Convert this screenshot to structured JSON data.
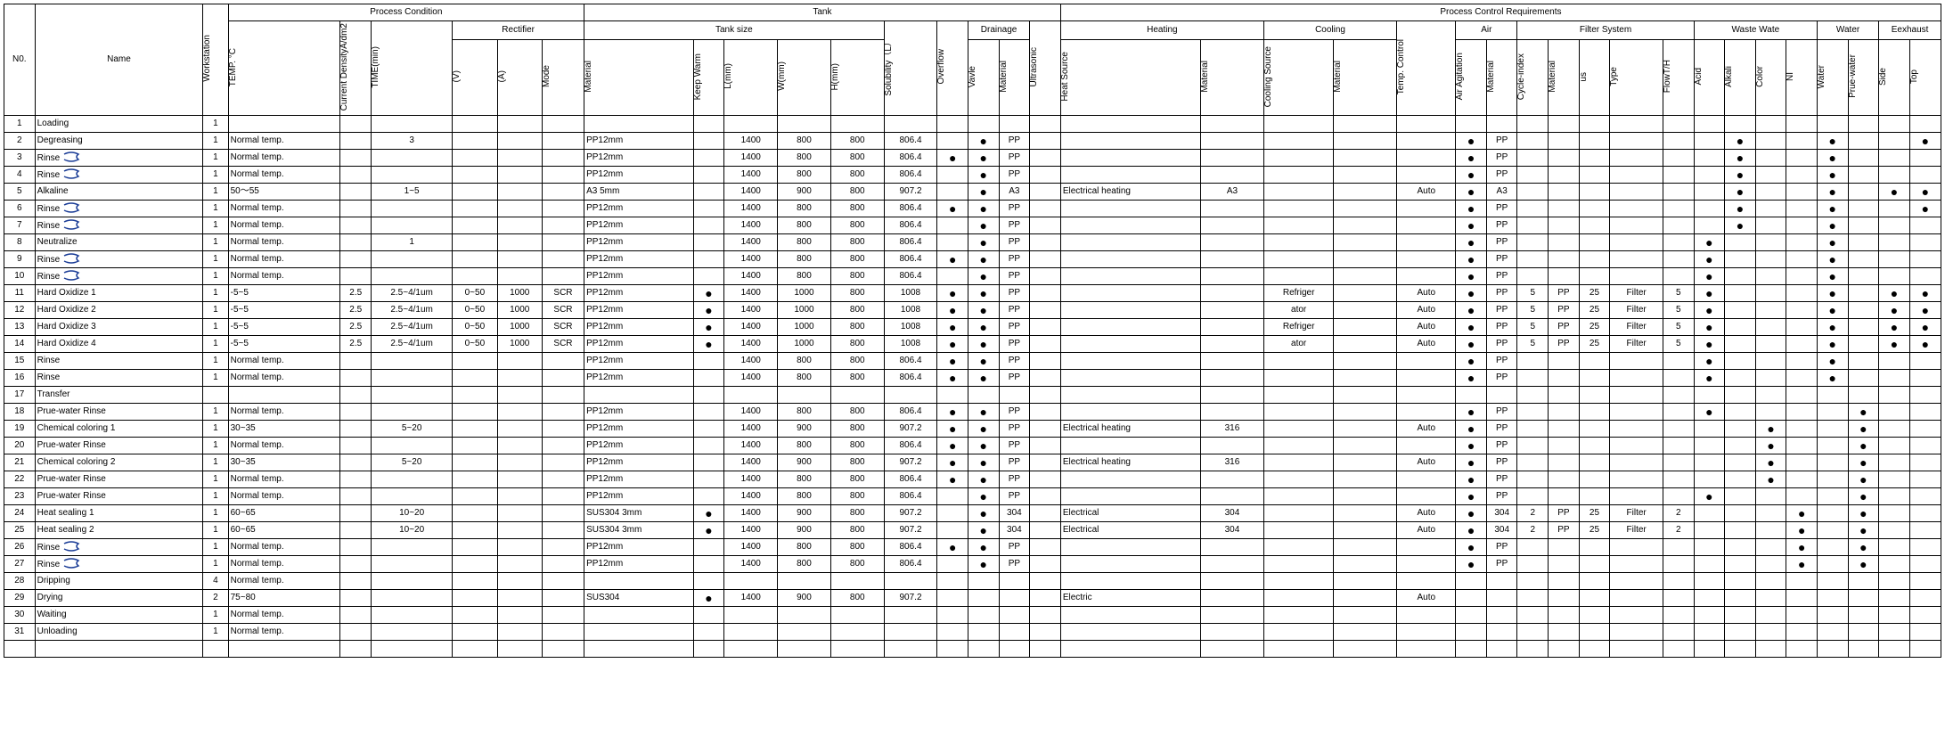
{
  "headers": {
    "top1": "Process Condition",
    "top2": "Tank",
    "top3": "Process Control Requirements",
    "rectifier": "Rectifier",
    "tanksize": "Tank size",
    "drainage": "Drainage",
    "heating": "Heating",
    "cooling": "Cooling",
    "air": "Air",
    "filter": "Filter System",
    "waste": "Waste Wate",
    "water": "Water",
    "exhaust": "Eexhaust",
    "no": "N0.",
    "name": "Name",
    "ws": "Workstation",
    "temp": "TEMP. °C",
    "cd": "Current DensityA/dm2",
    "time": "TIME(min)",
    "rv": "(V)",
    "ra": "(A)",
    "mode": "Mode",
    "material": "Material",
    "kw": "Keep Warm",
    "L": "L(mm)",
    "W": "W(mm)",
    "H": "H(mm)",
    "sol": "Solubility（L）",
    "ovf": "Overflow",
    "valve": "Vavle",
    "dmat": "Material",
    "us": "Ultrasonic",
    "hs": "Heat Source",
    "hm": "Material",
    "cs": "Cooling Source",
    "cm": "Material",
    "tc": "Temp. Control",
    "aa": "Air Agitation",
    "amat": "Material",
    "ci": "Cycle-index",
    "fmat": "Material",
    "fus": "us",
    "ftype": "Type",
    "flow": "FlowT/H",
    "acid": "Acid",
    "alk": "Alkali",
    "color": "Color",
    "ni": "NI",
    "wtr": "Water",
    "pw": "Prue-water",
    "side": "Side",
    "topx": "Top"
  },
  "rows": [
    {
      "no": "1",
      "name": "Loading",
      "ws": "1"
    },
    {
      "no": "2",
      "name": "Degreasing",
      "ws": "1",
      "temp": "Normal temp.",
      "time": "3",
      "mat": "PP12mm",
      "L": "1400",
      "W": "800",
      "H": "800",
      "sol": "806.4",
      "valve": "•",
      "dmat": "PP",
      "aa": "•",
      "amat": "PP",
      "alk": "•",
      "wtr": "•",
      "topx": "•"
    },
    {
      "no": "3",
      "name": "Rinse",
      "ws": "1",
      "temp": "Normal temp.",
      "mat": "PP12mm",
      "L": "1400",
      "W": "800",
      "H": "800",
      "sol": "806.4",
      "ovf": "•",
      "valve": "•",
      "dmat": "PP",
      "aa": "•",
      "amat": "PP",
      "alk": "•",
      "wtr": "•",
      "rinseMark": true
    },
    {
      "no": "4",
      "name": "Rinse",
      "ws": "1",
      "temp": "Normal temp.",
      "mat": "PP12mm",
      "L": "1400",
      "W": "800",
      "H": "800",
      "sol": "806.4",
      "valve": "•",
      "dmat": "PP",
      "aa": "•",
      "amat": "PP",
      "alk": "•",
      "wtr": "•",
      "rinseMark": true
    },
    {
      "no": "5",
      "name": "Alkaline",
      "ws": "1",
      "temp": "50～55",
      "time": "1~5",
      "mat": "A3 5mm",
      "L": "1400",
      "W": "900",
      "H": "800",
      "sol": "907.2",
      "valve": "•",
      "dmat": "A3",
      "hs": "Electrical heating",
      "hm": "A3",
      "tc": "Auto",
      "aa": "•",
      "amat": "A3",
      "alk": "•",
      "wtr": "•",
      "side": "•",
      "topx": "•"
    },
    {
      "no": "6",
      "name": "Rinse",
      "ws": "1",
      "temp": "Normal temp.",
      "mat": "PP12mm",
      "L": "1400",
      "W": "800",
      "H": "800",
      "sol": "806.4",
      "ovf": "•",
      "valve": "•",
      "dmat": "PP",
      "aa": "•",
      "amat": "PP",
      "alk": "•",
      "wtr": "•",
      "topx": "•",
      "rinseMark": true
    },
    {
      "no": "7",
      "name": "Rinse",
      "ws": "1",
      "temp": "Normal temp.",
      "mat": "PP12mm",
      "L": "1400",
      "W": "800",
      "H": "800",
      "sol": "806.4",
      "valve": "•",
      "dmat": "PP",
      "aa": "•",
      "amat": "PP",
      "alk": "•",
      "wtr": "•",
      "rinseMark": true
    },
    {
      "no": "8",
      "name": "Neutralize",
      "ws": "1",
      "temp": "Normal temp.",
      "time": "1",
      "mat": "PP12mm",
      "L": "1400",
      "W": "800",
      "H": "800",
      "sol": "806.4",
      "valve": "•",
      "dmat": "PP",
      "aa": "•",
      "amat": "PP",
      "acid": "•",
      "wtr": "•"
    },
    {
      "no": "9",
      "name": "Rinse",
      "ws": "1",
      "temp": "Normal temp.",
      "mat": "PP12mm",
      "L": "1400",
      "W": "800",
      "H": "800",
      "sol": "806.4",
      "ovf": "•",
      "valve": "•",
      "dmat": "PP",
      "aa": "•",
      "amat": "PP",
      "acid": "•",
      "wtr": "•",
      "rinseMark": true
    },
    {
      "no": "10",
      "name": "Rinse",
      "ws": "1",
      "temp": "Normal temp.",
      "mat": "PP12mm",
      "L": "1400",
      "W": "800",
      "H": "800",
      "sol": "806.4",
      "valve": "•",
      "dmat": "PP",
      "aa": "•",
      "amat": "PP",
      "acid": "•",
      "wtr": "•",
      "rinseMark": true
    },
    {
      "no": "11",
      "name": "Hard Oxidize 1",
      "ws": "1",
      "temp": "-5~5",
      "cd": "2.5",
      "time": "2.5~4/1um",
      "rv": "0~50",
      "ra": "1000",
      "mode": "SCR",
      "mat": "PP12mm",
      "kw": "•",
      "L": "1400",
      "W": "1000",
      "H": "800",
      "sol": "1008",
      "ovf": "•",
      "valve": "•",
      "dmat": "PP",
      "cs": "Refriger",
      "tc": "Auto",
      "aa": "•",
      "amat": "PP",
      "ci": "5",
      "fmat": "PP",
      "fus": "25",
      "ftype": "Filter",
      "flow": "5",
      "acid": "•",
      "wtr": "•",
      "side": "•",
      "topx": "•"
    },
    {
      "no": "12",
      "name": "Hard Oxidize 2",
      "ws": "1",
      "temp": "-5~5",
      "cd": "2.5",
      "time": "2.5~4/1um",
      "rv": "0~50",
      "ra": "1000",
      "mode": "SCR",
      "mat": "PP12mm",
      "kw": "•",
      "L": "1400",
      "W": "1000",
      "H": "800",
      "sol": "1008",
      "ovf": "•",
      "valve": "•",
      "dmat": "PP",
      "cs": "ator",
      "tc": "Auto",
      "aa": "•",
      "amat": "PP",
      "ci": "5",
      "fmat": "PP",
      "fus": "25",
      "ftype": "Filter",
      "flow": "5",
      "acid": "•",
      "wtr": "•",
      "side": "•",
      "topx": "•"
    },
    {
      "no": "13",
      "name": "Hard Oxidize 3",
      "ws": "1",
      "temp": "-5~5",
      "cd": "2.5",
      "time": "2.5~4/1um",
      "rv": "0~50",
      "ra": "1000",
      "mode": "SCR",
      "mat": "PP12mm",
      "kw": "•",
      "L": "1400",
      "W": "1000",
      "H": "800",
      "sol": "1008",
      "ovf": "•",
      "valve": "•",
      "dmat": "PP",
      "cs": "Refriger",
      "tc": "Auto",
      "aa": "•",
      "amat": "PP",
      "ci": "5",
      "fmat": "PP",
      "fus": "25",
      "ftype": "Filter",
      "flow": "5",
      "acid": "•",
      "wtr": "•",
      "side": "•",
      "topx": "•"
    },
    {
      "no": "14",
      "name": "Hard Oxidize 4",
      "ws": "1",
      "temp": "-5~5",
      "cd": "2.5",
      "time": "2.5~4/1um",
      "rv": "0~50",
      "ra": "1000",
      "mode": "SCR",
      "mat": "PP12mm",
      "kw": "•",
      "L": "1400",
      "W": "1000",
      "H": "800",
      "sol": "1008",
      "ovf": "•",
      "valve": "•",
      "dmat": "PP",
      "cs": "ator",
      "tc": "Auto",
      "aa": "•",
      "amat": "PP",
      "ci": "5",
      "fmat": "PP",
      "fus": "25",
      "ftype": "Filter",
      "flow": "5",
      "acid": "•",
      "wtr": "•",
      "side": "•",
      "topx": "•"
    },
    {
      "no": "15",
      "name": "Rinse",
      "ws": "1",
      "temp": "Normal temp.",
      "mat": "PP12mm",
      "L": "1400",
      "W": "800",
      "H": "800",
      "sol": "806.4",
      "ovf": "•",
      "valve": "•",
      "dmat": "PP",
      "aa": "•",
      "amat": "PP",
      "acid": "•",
      "wtr": "•"
    },
    {
      "no": "16",
      "name": "Rinse",
      "ws": "1",
      "temp": "Normal temp.",
      "mat": "PP12mm",
      "L": "1400",
      "W": "800",
      "H": "800",
      "sol": "806.4",
      "ovf": "•",
      "valve": "•",
      "dmat": "PP",
      "aa": "•",
      "amat": "PP",
      "acid": "•",
      "wtr": "•"
    },
    {
      "no": "17",
      "name": "Transfer"
    },
    {
      "no": "18",
      "name": "Prue-water Rinse",
      "ws": "1",
      "temp": "Normal temp.",
      "mat": "PP12mm",
      "L": "1400",
      "W": "800",
      "H": "800",
      "sol": "806.4",
      "ovf": "•",
      "valve": "•",
      "dmat": "PP",
      "aa": "•",
      "amat": "PP",
      "acid": "•",
      "pw": "•"
    },
    {
      "no": "19",
      "name": "Chemical coloring 1",
      "ws": "1",
      "temp": "30~35",
      "time": "5~20",
      "mat": "PP12mm",
      "L": "1400",
      "W": "900",
      "H": "800",
      "sol": "907.2",
      "ovf": "•",
      "valve": "•",
      "dmat": "PP",
      "hs": "Electrical heating",
      "hm": "316",
      "tc": "Auto",
      "aa": "•",
      "amat": "PP",
      "color": "•",
      "pw": "•"
    },
    {
      "no": "20",
      "name": "Prue-water Rinse",
      "ws": "1",
      "temp": "Normal temp.",
      "mat": "PP12mm",
      "L": "1400",
      "W": "800",
      "H": "800",
      "sol": "806.4",
      "ovf": "•",
      "valve": "•",
      "dmat": "PP",
      "aa": "•",
      "amat": "PP",
      "color": "•",
      "pw": "•"
    },
    {
      "no": "21",
      "name": "Chemical coloring 2",
      "ws": "1",
      "temp": "30~35",
      "time": "5~20",
      "mat": "PP12mm",
      "L": "1400",
      "W": "900",
      "H": "800",
      "sol": "907.2",
      "ovf": "•",
      "valve": "•",
      "dmat": "PP",
      "hs": "Electrical heating",
      "hm": "316",
      "tc": "Auto",
      "aa": "•",
      "amat": "PP",
      "color": "•",
      "pw": "•"
    },
    {
      "no": "22",
      "name": "Prue-water Rinse",
      "ws": "1",
      "temp": "Normal temp.",
      "mat": "PP12mm",
      "L": "1400",
      "W": "800",
      "H": "800",
      "sol": "806.4",
      "ovf": "•",
      "valve": "•",
      "dmat": "PP",
      "aa": "•",
      "amat": "PP",
      "color": "•",
      "pw": "•"
    },
    {
      "no": "23",
      "name": "Prue-water Rinse",
      "ws": "1",
      "temp": "Normal temp.",
      "mat": "PP12mm",
      "L": "1400",
      "W": "800",
      "H": "800",
      "sol": "806.4",
      "valve": "•",
      "dmat": "PP",
      "aa": "•",
      "amat": "PP",
      "acid": "•",
      "pw": "•"
    },
    {
      "no": "24",
      "name": "Heat sealing 1",
      "ws": "1",
      "temp": "60~65",
      "time": "10~20",
      "mat": "SUS304 3mm",
      "kw": "•",
      "L": "1400",
      "W": "900",
      "H": "800",
      "sol": "907.2",
      "valve": "•",
      "dmat": "304",
      "hs": "Electrical",
      "hm": "304",
      "tc": "Auto",
      "aa": "•",
      "amat": "304",
      "ci": "2",
      "fmat": "PP",
      "fus": "25",
      "ftype": "Filter",
      "flow": "2",
      "ni": "•",
      "pw": "•"
    },
    {
      "no": "25",
      "name": "Heat sealing 2",
      "ws": "1",
      "temp": "60~65",
      "time": "10~20",
      "mat": "SUS304 3mm",
      "kw": "•",
      "L": "1400",
      "W": "900",
      "H": "800",
      "sol": "907.2",
      "valve": "•",
      "dmat": "304",
      "hs": "Electrical",
      "hm": "304",
      "tc": "Auto",
      "aa": "•",
      "amat": "304",
      "ci": "2",
      "fmat": "PP",
      "fus": "25",
      "ftype": "Filter",
      "flow": "2",
      "ni": "•",
      "pw": "•"
    },
    {
      "no": "26",
      "name": "Rinse",
      "ws": "1",
      "temp": "Normal temp.",
      "mat": "PP12mm",
      "L": "1400",
      "W": "800",
      "H": "800",
      "sol": "806.4",
      "ovf": "•",
      "valve": "•",
      "dmat": "PP",
      "aa": "•",
      "amat": "PP",
      "ni": "•",
      "pw": "•",
      "rinseMark": true
    },
    {
      "no": "27",
      "name": "Rinse",
      "ws": "1",
      "temp": "Normal temp.",
      "mat": "PP12mm",
      "L": "1400",
      "W": "800",
      "H": "800",
      "sol": "806.4",
      "valve": "•",
      "dmat": "PP",
      "aa": "•",
      "amat": "PP",
      "ni": "•",
      "pw": "•",
      "rinseMark": true
    },
    {
      "no": "28",
      "name": "Dripping",
      "ws": "4",
      "temp": "Normal temp."
    },
    {
      "no": "29",
      "name": "Drying",
      "ws": "2",
      "temp": "75~80",
      "mat": "SUS304",
      "kw": "•",
      "L": "1400",
      "W": "900",
      "H": "800",
      "sol": "907.2",
      "hs": "Electric",
      "tc": "Auto"
    },
    {
      "no": "30",
      "name": "Waiting",
      "ws": "1",
      "temp": "Normal temp."
    },
    {
      "no": "31",
      "name": "Unloading",
      "ws": "1",
      "temp": "Normal temp."
    }
  ],
  "svg": {
    "rinseMark": "<svg width='22' height='12' viewBox='0 0 22 12'><path d='M2 3 Q10 -1 18 3 Q14 6 18 9 Q10 13 2 9' fill='none' stroke='#1a3c96' stroke-width='1.5'/></svg>"
  }
}
